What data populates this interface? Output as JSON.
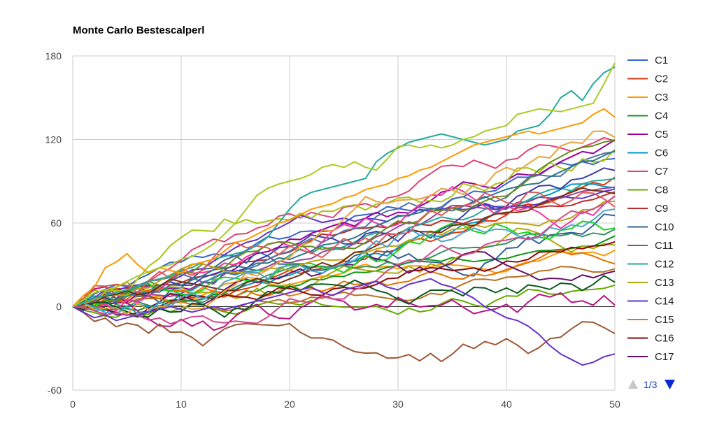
{
  "chart_data": {
    "type": "line",
    "title": "Monte Carlo Bestescalperl",
    "xlim": [
      0,
      50
    ],
    "ylim": [
      -60,
      180
    ],
    "x_ticks": [
      "0",
      "10",
      "20",
      "30",
      "40",
      "50"
    ],
    "y_ticks": [
      "180",
      "120",
      "60",
      "0",
      "-60"
    ],
    "grid": true,
    "legend_position": "right",
    "series": [
      {
        "name": "C1",
        "color": "#3366cc"
      },
      {
        "name": "C2",
        "color": "#dc3912"
      },
      {
        "name": "C3",
        "color": "#ff9900"
      },
      {
        "name": "C4",
        "color": "#109618"
      },
      {
        "name": "C5",
        "color": "#990099"
      },
      {
        "name": "C6",
        "color": "#0099c6"
      },
      {
        "name": "C7",
        "color": "#dd4477"
      },
      {
        "name": "C8",
        "color": "#66aa00"
      },
      {
        "name": "C9",
        "color": "#b82e2e"
      },
      {
        "name": "C10",
        "color": "#316395"
      },
      {
        "name": "C11",
        "color": "#994499"
      },
      {
        "name": "C12",
        "color": "#22aa99"
      },
      {
        "name": "C13",
        "color": "#aaaa11"
      },
      {
        "name": "C14",
        "color": "#6633cc"
      },
      {
        "name": "C15",
        "color": "#e67300"
      },
      {
        "name": "C16",
        "color": "#8b0707"
      },
      {
        "name": "C17",
        "color": "#651067"
      }
    ],
    "extra_series_colors": [
      "#329262",
      "#5574a6",
      "#3b3eac",
      "#b77322",
      "#16d620",
      "#b91383",
      "#f4359e",
      "#9c5935",
      "#a9c413",
      "#2a778d",
      "#668d1c",
      "#bea413",
      "#0c5922",
      "#743411",
      "#dd5a5a",
      "#e8a23b",
      "#4fa3c7",
      "#cf4c8e"
    ],
    "highlight_paths": {
      "C13_light": [
        0,
        5,
        10,
        12,
        14,
        18,
        22,
        25,
        28,
        30,
        34,
        36,
        40,
        45,
        52,
        60,
        70,
        80,
        85,
        88,
        90,
        92,
        95,
        100,
        102,
        100,
        104,
        100,
        98,
        106,
        115,
        116,
        114,
        116,
        114,
        116,
        120,
        122,
        126,
        128,
        130,
        138,
        140,
        142,
        141,
        140,
        142,
        144,
        146,
        160,
        175
      ],
      "C12_teal": [
        0,
        3,
        6,
        8,
        10,
        12,
        14,
        18,
        20,
        22,
        26,
        28,
        32,
        34,
        36,
        38,
        40,
        44,
        50,
        60,
        70,
        78,
        82,
        84,
        86,
        88,
        90,
        92,
        104,
        110,
        114,
        118,
        120,
        122,
        124,
        122,
        120,
        118,
        116,
        118,
        120,
        126,
        128,
        130,
        138,
        150,
        155,
        148,
        160,
        168,
        172
      ],
      "C3_orange": [
        0,
        8,
        14,
        28,
        32,
        38,
        30,
        24,
        28,
        26,
        24,
        30,
        32,
        34,
        40,
        46,
        48,
        52,
        56,
        60,
        62,
        66,
        70,
        72,
        74,
        78,
        80,
        84,
        86,
        88,
        92,
        94,
        98,
        100,
        104,
        108,
        112,
        116,
        118,
        120,
        122,
        124,
        126,
        124,
        126,
        128,
        130,
        132,
        138,
        142,
        136
      ],
      "C14_down": [
        0,
        -4,
        -8,
        -6,
        -10,
        -8,
        -6,
        -4,
        -2,
        0,
        -2,
        -4,
        -2,
        0,
        -2,
        0,
        2,
        4,
        6,
        8,
        10,
        12,
        14,
        10,
        8,
        12,
        14,
        16,
        18,
        14,
        12,
        16,
        18,
        20,
        16,
        14,
        10,
        6,
        0,
        -4,
        -8,
        -10,
        -14,
        -20,
        -28,
        -34,
        -38,
        -42,
        -40,
        -36,
        -34
      ]
    },
    "pager": {
      "label": "1/3"
    }
  }
}
